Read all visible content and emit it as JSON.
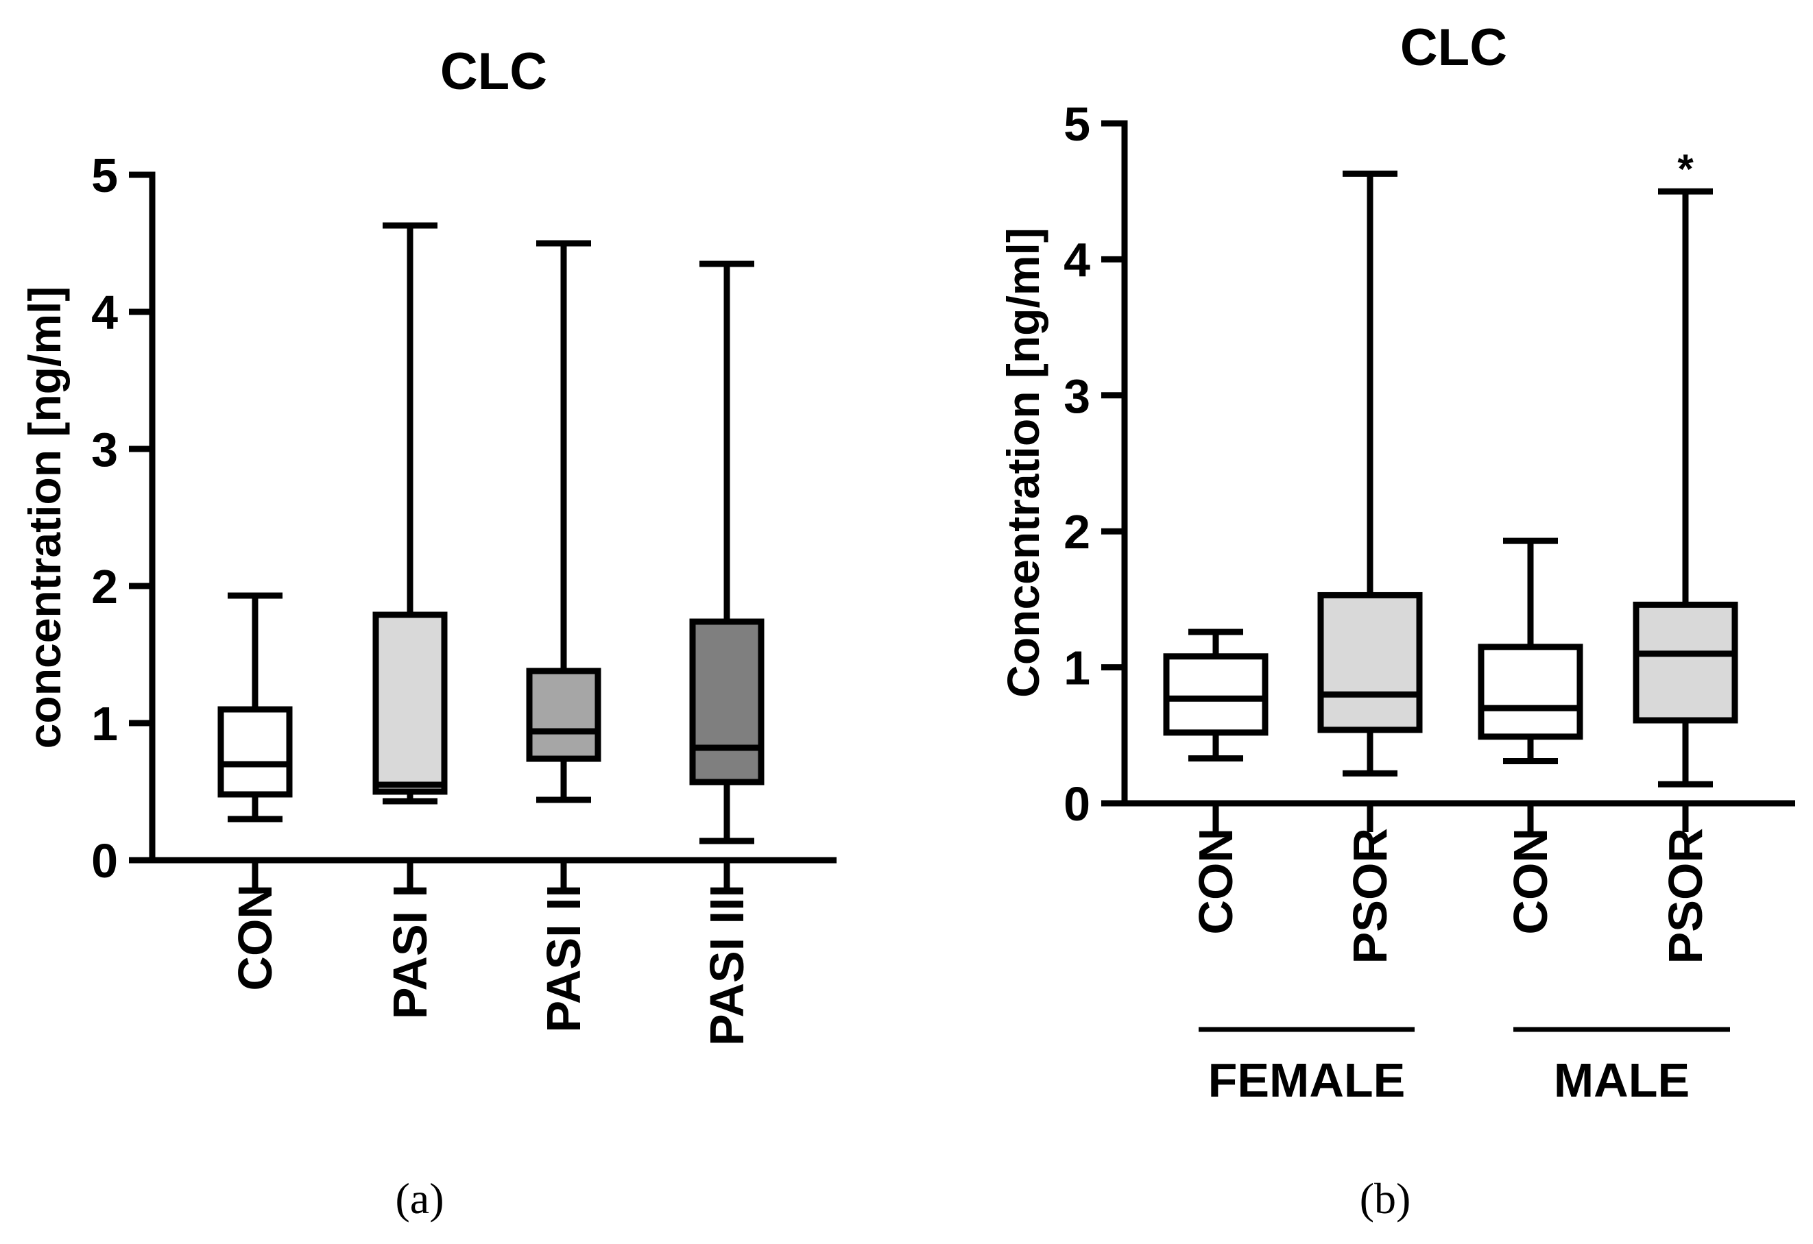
{
  "chart_data": [
    {
      "type": "boxplot",
      "panel_label": "(a)",
      "title": "CLC",
      "ylabel": "concentration [ng/ml]",
      "xlabel": "",
      "ylim": [
        0,
        5
      ],
      "yticks": [
        "0",
        "1",
        "2",
        "3",
        "4",
        "5"
      ],
      "categories": [
        "CON",
        "PASI I",
        "PASI II",
        "PASI III"
      ],
      "groups": [],
      "boxes": [
        {
          "label": "CON",
          "min": 0.3,
          "q1": 0.48,
          "median": 0.7,
          "q3": 1.1,
          "max": 1.93,
          "fill": "#ffffff",
          "annotation": ""
        },
        {
          "label": "PASI I",
          "min": 0.43,
          "q1": 0.5,
          "median": 0.55,
          "q3": 1.79,
          "max": 4.63,
          "fill": "#d9d9d9",
          "annotation": ""
        },
        {
          "label": "PASI II",
          "min": 0.44,
          "q1": 0.74,
          "median": 0.94,
          "q3": 1.38,
          "max": 4.5,
          "fill": "#a6a6a6",
          "annotation": ""
        },
        {
          "label": "PASI III",
          "min": 0.14,
          "q1": 0.57,
          "median": 0.82,
          "q3": 1.74,
          "max": 4.35,
          "fill": "#7f7f7f",
          "annotation": ""
        }
      ]
    },
    {
      "type": "boxplot",
      "panel_label": "(b)",
      "title": "CLC",
      "ylabel": "Concentration [ng/ml]",
      "xlabel": "",
      "ylim": [
        0,
        5
      ],
      "yticks": [
        "0",
        "1",
        "2",
        "3",
        "4",
        "5"
      ],
      "categories": [
        "CON",
        "PSOR",
        "CON",
        "PSOR"
      ],
      "groups": [
        {
          "label": "FEMALE",
          "span": [
            0,
            1
          ]
        },
        {
          "label": "MALE",
          "span": [
            2,
            3
          ]
        }
      ],
      "boxes": [
        {
          "label": "CON",
          "min": 0.33,
          "q1": 0.52,
          "median": 0.77,
          "q3": 1.08,
          "max": 1.26,
          "fill": "#ffffff",
          "annotation": ""
        },
        {
          "label": "PSOR",
          "min": 0.22,
          "q1": 0.54,
          "median": 0.8,
          "q3": 1.53,
          "max": 4.63,
          "fill": "#d9d9d9",
          "annotation": ""
        },
        {
          "label": "CON",
          "min": 0.31,
          "q1": 0.49,
          "median": 0.7,
          "q3": 1.15,
          "max": 1.93,
          "fill": "#ffffff",
          "annotation": ""
        },
        {
          "label": "PSOR",
          "min": 0.14,
          "q1": 0.61,
          "median": 1.1,
          "q3": 1.46,
          "max": 4.5,
          "fill": "#d9d9d9",
          "annotation": "*"
        }
      ]
    }
  ]
}
